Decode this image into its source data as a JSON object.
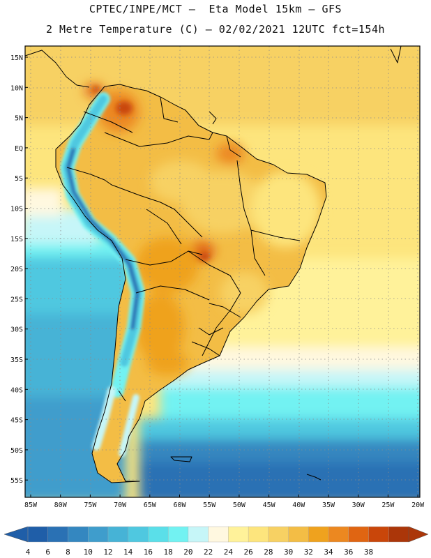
{
  "header": {
    "line1": "CPTEC/INPE/MCT —  Eta Model 15km — GFS",
    "line2": "2 Metre Temperature (C) — 02/02/2021 12UTC fct=154h"
  },
  "map": {
    "lat_labels": [
      "15N",
      "10N",
      "5N",
      "EQ",
      "5S",
      "10S",
      "15S",
      "20S",
      "25S",
      "30S",
      "35S",
      "40S",
      "45S",
      "50S",
      "55S"
    ],
    "lon_labels": [
      "85W",
      "80W",
      "75W",
      "70W",
      "65W",
      "60W",
      "55W",
      "50W",
      "45W",
      "40W",
      "35W",
      "30W",
      "25W",
      "20W"
    ],
    "lat_range": [
      -58,
      16.5
    ],
    "lon_range": [
      -86,
      -20.5
    ]
  },
  "legend": {
    "labels": [
      "4",
      "6",
      "8",
      "10",
      "12",
      "14",
      "16",
      "18",
      "20",
      "22",
      "24",
      "26",
      "28",
      "30",
      "32",
      "34",
      "36",
      "38"
    ],
    "colors": [
      "#1f5ea8",
      "#2a71b4",
      "#3487c0",
      "#3f9dcc",
      "#46b3d6",
      "#4fc8e0",
      "#5adfe9",
      "#72f2f2",
      "#c6f6f8",
      "#fff8e0",
      "#fff29a",
      "#fde57d",
      "#f7d163",
      "#f3bd45",
      "#efa21e",
      "#ec8820",
      "#e06512",
      "#c9460a",
      "#ab3609"
    ]
  }
}
